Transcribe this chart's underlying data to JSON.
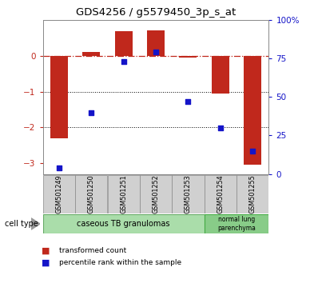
{
  "title": "GDS4256 / g5579450_3p_s_at",
  "samples": [
    "GSM501249",
    "GSM501250",
    "GSM501251",
    "GSM501252",
    "GSM501253",
    "GSM501254",
    "GSM501255"
  ],
  "red_values": [
    -2.3,
    0.1,
    0.68,
    0.7,
    -0.05,
    -1.05,
    -3.05
  ],
  "blue_values": [
    4,
    40,
    73,
    79,
    47,
    30,
    15
  ],
  "ylim_left": [
    -3.3,
    1.0
  ],
  "ylim_right": [
    0,
    100
  ],
  "yticks_left": [
    -3,
    -2,
    -1,
    0
  ],
  "yticks_right": [
    0,
    25,
    50,
    75,
    100
  ],
  "ytick_right_labels": [
    "0",
    "25",
    "50",
    "75",
    "100%"
  ],
  "dotted_lines": [
    -1,
    -2
  ],
  "red_color": "#C0281C",
  "blue_color": "#1414C8",
  "bar_width": 0.55,
  "legend_red": "transformed count",
  "legend_blue": "percentile rank within the sample",
  "bg_color": "#FFFFFF",
  "plot_bg": "#FFFFFF",
  "gray_box_color": "#D0D0D0",
  "group1_color": "#AADDAA",
  "group1_edge": "#66AA66",
  "group2_color": "#88CC88",
  "group2_edge": "#44AA44",
  "group1_label": "caseous TB granulomas",
  "group2_label": "normal lung\nparenchyma",
  "cell_type_label": "cell type"
}
